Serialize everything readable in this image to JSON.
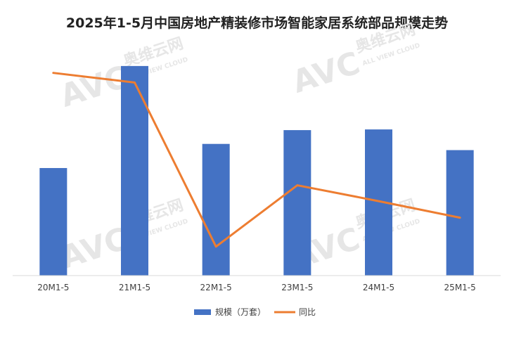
{
  "chart_data": {
    "type": "bar",
    "title": "2025年1-5月中国房地产精装修市场智能家居系统部品规模走势",
    "categories": [
      "20M1-5",
      "21M1-5",
      "22M1-5",
      "23M1-5",
      "24M1-5",
      "25M1-5"
    ],
    "series": [
      {
        "name": "规模（万套）",
        "type": "bar",
        "color": "#4472C4",
        "values": [
          156,
          304,
          191,
          211,
          212,
          182
        ]
      },
      {
        "name": "同比",
        "type": "line",
        "color": "#ED7D31",
        "values": [
          294,
          280,
          42,
          131,
          108,
          84
        ]
      }
    ],
    "ylim": [
      0,
      310
    ],
    "legend": "bottom",
    "grid": false
  },
  "watermark": {
    "brand_cn": "奥维云网",
    "brand_en": "ALL VIEW CLOUD",
    "logo": "AVC"
  }
}
